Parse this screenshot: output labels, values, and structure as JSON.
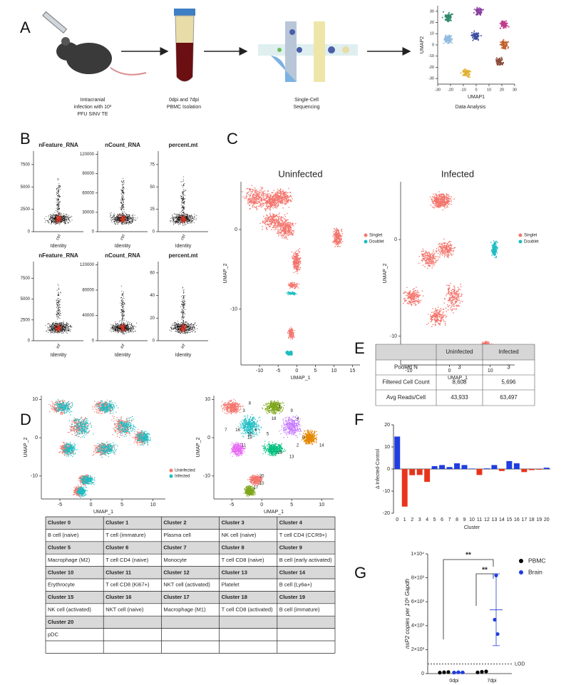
{
  "panel_labels": {
    "a": "A",
    "b": "B",
    "c": "C",
    "d": "D",
    "e": "E",
    "f": "F",
    "g": "G"
  },
  "panel_a": {
    "steps": [
      {
        "caption": [
          "Intracranial",
          "infection with 10³",
          "PFU SINV TE"
        ]
      },
      {
        "caption": [
          "0dpi and 7dpi",
          "PBMC Isolation"
        ]
      },
      {
        "caption": [
          "Single-Cell",
          "Sequencing"
        ]
      },
      {
        "caption": [
          "Data Analysis"
        ]
      }
    ],
    "umap": {
      "xlabel": "UMAP1",
      "ylabel": "UMAP2",
      "xlim": [
        -30,
        30
      ],
      "ylim": [
        -35,
        35
      ],
      "xticks": [
        -30,
        -20,
        -10,
        0,
        10,
        20,
        30
      ],
      "yticks": [
        -30,
        -20,
        -10,
        0,
        10,
        20,
        30
      ]
    }
  },
  "panel_b": {
    "plots": [
      {
        "title": "nFeature_RNA",
        "xtick": "ctrl",
        "xlabel": "Identity",
        "ylim": [
          0,
          9000
        ],
        "yticks": [
          0,
          2500,
          5000,
          7500
        ]
      },
      {
        "title": "nCount_RNA",
        "xtick": "ctrl",
        "xlabel": "Identity",
        "ylim": [
          0,
          125000
        ],
        "yticks": [
          0,
          30000,
          60000,
          90000,
          120000
        ]
      },
      {
        "title": "percent.mt",
        "xtick": "ctrl",
        "xlabel": "Identity",
        "ylim": [
          0,
          90
        ],
        "yticks": [
          0,
          25,
          50,
          75
        ]
      },
      {
        "title": "nFeature_RNA",
        "xtick": "inf",
        "xlabel": "Identity",
        "ylim": [
          0,
          9500
        ],
        "yticks": [
          0,
          2500,
          5000,
          7500
        ]
      },
      {
        "title": "nCount_RNA",
        "xtick": "inf",
        "xlabel": "Identity",
        "ylim": [
          0,
          125000
        ],
        "yticks": [
          0,
          40000,
          80000,
          120000
        ]
      },
      {
        "title": "percent.mt",
        "xtick": "inf",
        "xlabel": "Identity",
        "ylim": [
          0,
          70
        ],
        "yticks": [
          0,
          20,
          40,
          60
        ]
      }
    ]
  },
  "panel_c": {
    "plots": [
      {
        "title": "Uninfected",
        "xlabel": "UMAP_1",
        "ylabel": "UMAP_2",
        "xlim": [
          -15,
          17
        ],
        "ylim": [
          -17,
          6
        ],
        "xticks": [
          -10,
          -5,
          0,
          5,
          10,
          15
        ],
        "yticks": [
          -10,
          0
        ],
        "legend": [
          {
            "name": "Singlet",
            "color": "#f3766e"
          },
          {
            "name": "Doublet",
            "color": "#1cbdc2"
          }
        ]
      },
      {
        "title": "Infected",
        "xlabel": "UMAP_1",
        "ylabel": "UMAP_2",
        "xlim": [
          -12,
          16
        ],
        "ylim": [
          -13,
          6
        ],
        "xticks": [
          -10,
          0,
          10
        ],
        "yticks": [
          -10,
          0
        ],
        "legend": [
          {
            "name": "Singlet",
            "color": "#f3766e"
          },
          {
            "name": "Doublet",
            "color": "#1cbdc2"
          }
        ]
      }
    ]
  },
  "panel_d": {
    "plots": [
      {
        "xlabel": "UMAP_1",
        "ylabel": "UMAP_2",
        "xlim": [
          -8,
          12
        ],
        "ylim": [
          -16,
          11
        ],
        "xticks": [
          -5,
          0,
          5,
          10
        ],
        "yticks": [
          -10,
          0,
          10
        ],
        "legend": [
          {
            "name": "Uninfected",
            "color": "#f3766e"
          },
          {
            "name": "Infected",
            "color": "#1cbdc2"
          }
        ]
      },
      {
        "xlabel": "UMAP_1",
        "ylabel": "UMAP_2",
        "xlim": [
          -8,
          12
        ],
        "ylim": [
          -16,
          11
        ],
        "xticks": [
          -5,
          0,
          5,
          10
        ],
        "yticks": [
          -10,
          0,
          10
        ],
        "cluster_labels": [
          "0",
          "1",
          "2",
          "3",
          "4",
          "5",
          "6",
          "7",
          "8",
          "9",
          "10",
          "11",
          "12",
          "13",
          "14",
          "15",
          "16",
          "17",
          "18",
          "19",
          "20"
        ]
      }
    ],
    "table": [
      {
        "cluster": "Cluster 0",
        "cell_type": "B cell (naive)"
      },
      {
        "cluster": "Cluster 1",
        "cell_type": "T cell (immature)"
      },
      {
        "cluster": "Cluster 2",
        "cell_type": "Plasma cell"
      },
      {
        "cluster": "Cluster 3",
        "cell_type": "NK cell (naive)"
      },
      {
        "cluster": "Cluster 4",
        "cell_type": "T cell CD4 (CCR9+)"
      },
      {
        "cluster": "Cluster 5",
        "cell_type": "Macrophage (M2)"
      },
      {
        "cluster": "Cluster 6",
        "cell_type": "T cell CD4 (naive)"
      },
      {
        "cluster": "Cluster 7",
        "cell_type": "Monocyte"
      },
      {
        "cluster": "Cluster 8",
        "cell_type": "T cell CD8 (naive)"
      },
      {
        "cluster": "Cluster 9",
        "cell_type": "B cell (early activated)"
      },
      {
        "cluster": "Cluster 10",
        "cell_type": "Erythrocyte"
      },
      {
        "cluster": "Cluster 11",
        "cell_type": "T cell CD8 (Ki67+)"
      },
      {
        "cluster": "Cluster 12",
        "cell_type": "NKT cell (activated)"
      },
      {
        "cluster": "Cluster 13",
        "cell_type": "Platelet"
      },
      {
        "cluster": "Cluster 14",
        "cell_type": "B cell (Ly6a+)"
      },
      {
        "cluster": "Cluster 15",
        "cell_type": "NK cell (activated)"
      },
      {
        "cluster": "Cluster 16",
        "cell_type": "NKT cell (naive)"
      },
      {
        "cluster": "Cluster 17",
        "cell_type": "Macrophage (M1)"
      },
      {
        "cluster": "Cluster 18",
        "cell_type": "T cell CD8 (activated)"
      },
      {
        "cluster": "Cluster 19",
        "cell_type": "B cell (immature)"
      },
      {
        "cluster": "Cluster 20",
        "cell_type": "pDC"
      }
    ]
  },
  "panel_e": {
    "columns": [
      "Uninfected",
      "Infected"
    ],
    "rows": [
      {
        "label": "Pooled N",
        "values": [
          "3",
          "3"
        ]
      },
      {
        "label": "Filtered Cell Count",
        "values": [
          "8,608",
          "5,696"
        ]
      },
      {
        "label": "Avg Reads/Cell",
        "values": [
          "43,933",
          "63,497"
        ]
      }
    ]
  },
  "chart_data": [
    {
      "type": "bar",
      "ylabel": "Δ Infected-Control",
      "xlabel": "Cluster",
      "categories": [
        "0",
        "1",
        "2",
        "3",
        "4",
        "5",
        "6",
        "7",
        "8",
        "9",
        "10",
        "11",
        "12",
        "13",
        "14",
        "15",
        "16",
        "17",
        "18",
        "19",
        "20"
      ],
      "values": [
        14.7,
        -17,
        -2.8,
        -2.7,
        -5.8,
        1.3,
        1.8,
        0.9,
        2.6,
        1.8,
        0.2,
        -2.7,
        0.3,
        1.8,
        -0.9,
        3.6,
        2.6,
        -1.4,
        -0.5,
        -0.3,
        0.6
      ],
      "ylim": [
        -20,
        20
      ],
      "yticks": [
        -20,
        -10,
        0,
        10,
        20
      ],
      "colors": {
        "positive": "#1f3de0",
        "negative": "#e8341c"
      }
    },
    {
      "type": "dot",
      "ylabel": "nsP2 copies per 10⁶ Gapdh",
      "categories": [
        "0dpi",
        "7dpi"
      ],
      "series": [
        {
          "name": "PBMC",
          "color": "#000000",
          "values": [
            [
              80,
              110,
              130
            ],
            [
              100,
              150,
              180
            ]
          ]
        },
        {
          "name": "Brain",
          "color": "#1f3de0",
          "values": [
            [
              90,
              110,
              100
            ],
            [
              8200,
              4500,
              3300
            ]
          ],
          "mean": [
            100,
            5333
          ],
          "error": [
            10,
            3000
          ]
        }
      ],
      "ylim": [
        0,
        10000
      ],
      "yticks": [
        0,
        {
          "value": 2000,
          "label": "2×10³"
        },
        {
          "value": 4000,
          "label": "4×10³"
        },
        {
          "value": 6000,
          "label": "6×10³"
        },
        {
          "value": 8000,
          "label": "8×10³"
        },
        {
          "value": 10000,
          "label": "1×10⁴"
        }
      ],
      "reference_line": {
        "value": 800,
        "label": "LOD"
      },
      "annotations": [
        {
          "text": "**"
        },
        {
          "text": "**"
        }
      ]
    }
  ]
}
